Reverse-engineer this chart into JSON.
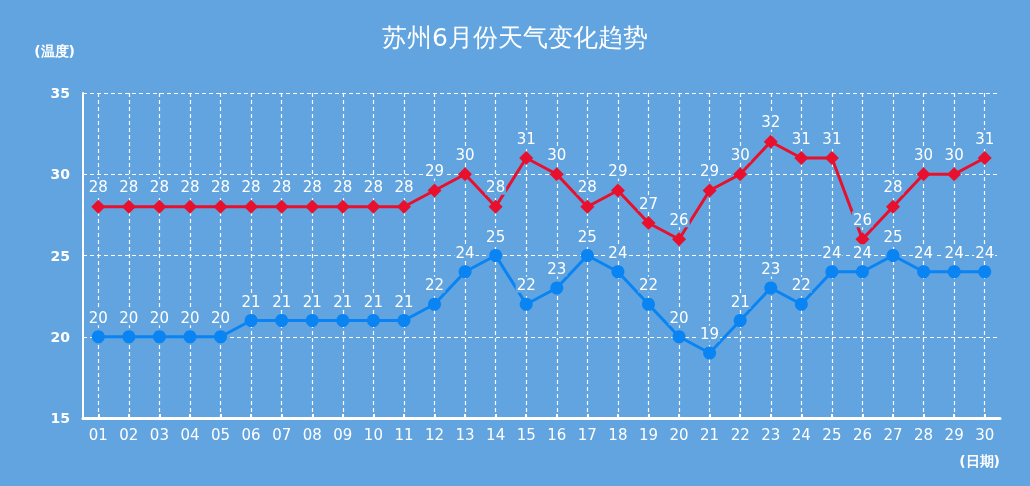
{
  "chart_data": {
    "type": "line",
    "title": "苏州6月份天气变化趋势",
    "xlabel": "(日期)",
    "ylabel": "(温度)",
    "categories": [
      "01",
      "02",
      "03",
      "04",
      "05",
      "06",
      "07",
      "08",
      "09",
      "10",
      "11",
      "12",
      "13",
      "14",
      "15",
      "16",
      "17",
      "18",
      "19",
      "20",
      "21",
      "22",
      "23",
      "24",
      "25",
      "26",
      "27",
      "28",
      "29",
      "30"
    ],
    "series": [
      {
        "color": "#e8102c",
        "marker": "diamond",
        "values": [
          28,
          28,
          28,
          28,
          28,
          28,
          28,
          28,
          28,
          28,
          28,
          29,
          30,
          28,
          31,
          30,
          28,
          29,
          27,
          26,
          29,
          30,
          32,
          31,
          31,
          26,
          28,
          30,
          30,
          31
        ]
      },
      {
        "color": "#0a84f2",
        "marker": "circle",
        "values": [
          20,
          20,
          20,
          20,
          20,
          21,
          21,
          21,
          21,
          21,
          21,
          22,
          24,
          25,
          22,
          23,
          25,
          24,
          22,
          20,
          19,
          21,
          23,
          22,
          24,
          24,
          25,
          24,
          24,
          24
        ]
      }
    ],
    "ylim": [
      15,
      35
    ],
    "yticks": [
      15,
      20,
      25,
      30,
      35
    ],
    "grid": true,
    "data_labels": true,
    "line_style": "solid"
  }
}
